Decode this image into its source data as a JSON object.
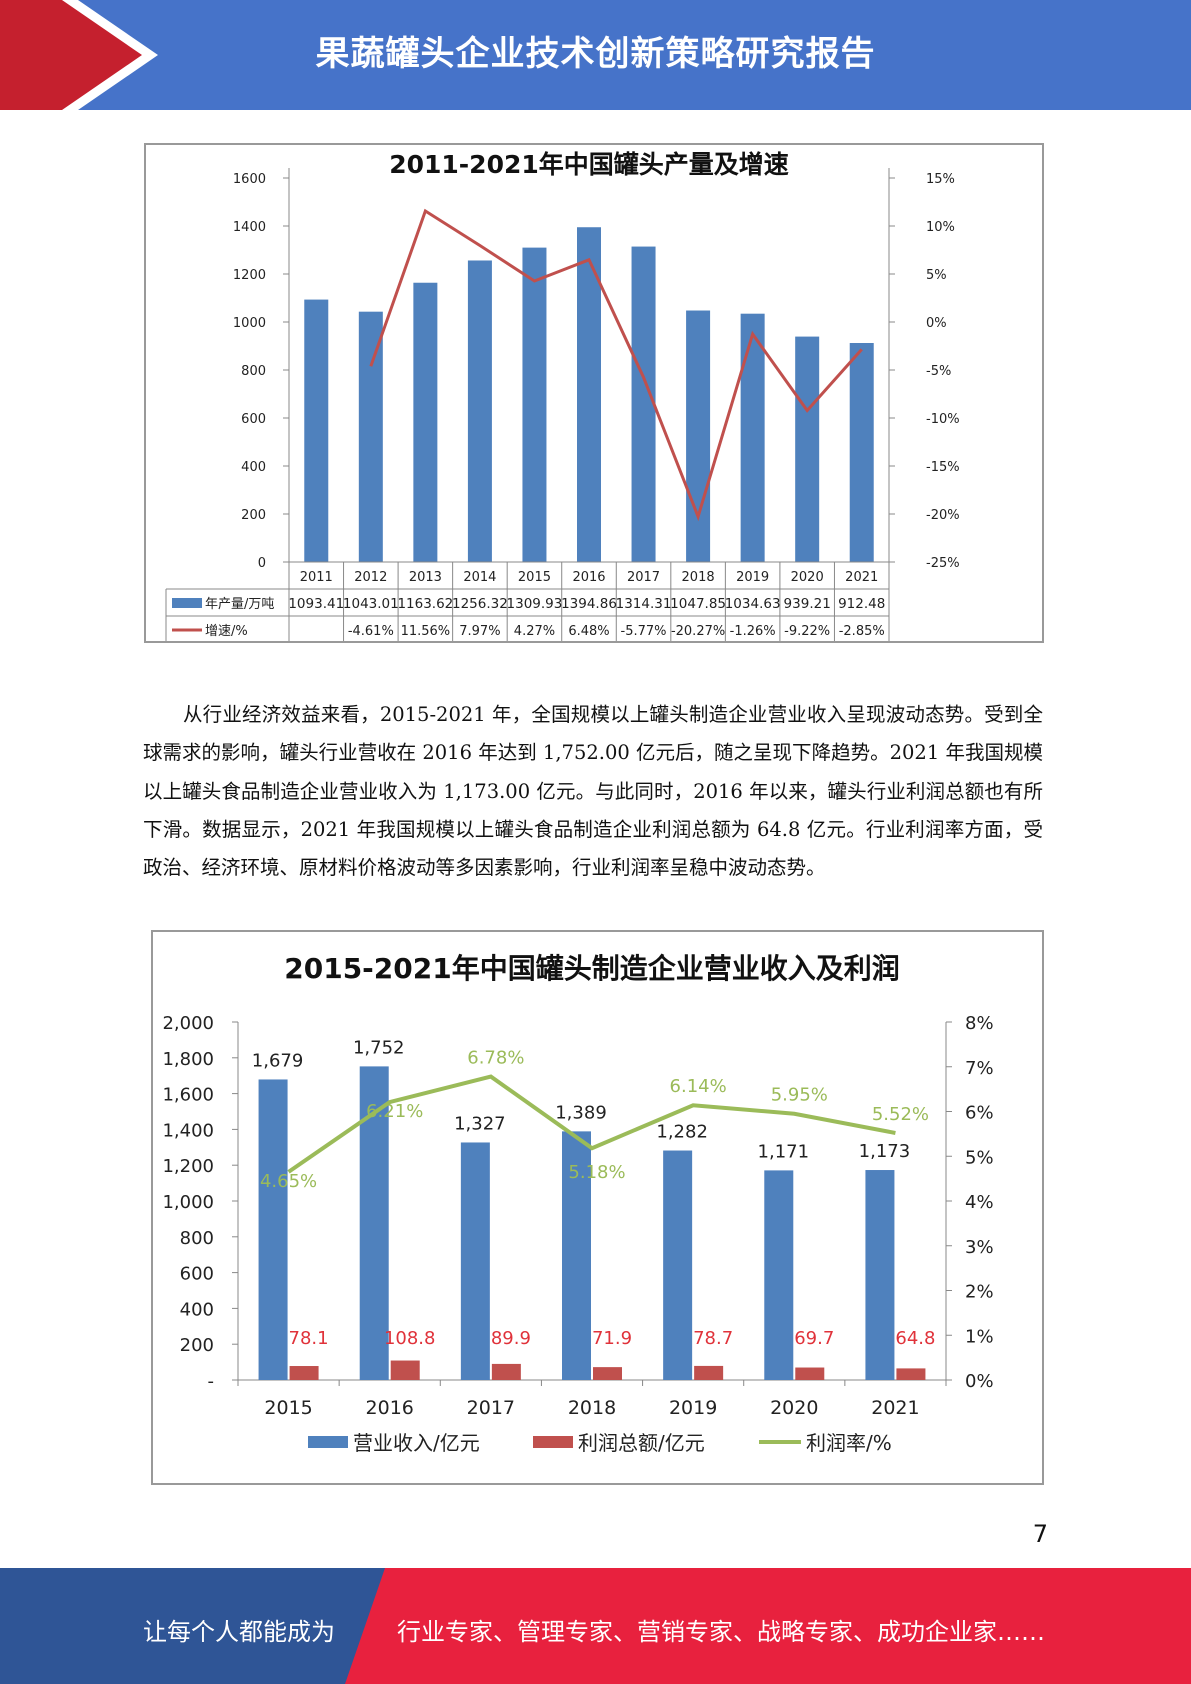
{
  "header": {
    "title": "果蔬罐头企业技术创新策略研究报告"
  },
  "colors": {
    "header_blue": "#4673c9",
    "header_red": "#c5202e",
    "footer_blue": "#2f5596",
    "footer_red": "#e8213e"
  },
  "chart_data": [
    {
      "type": "bar",
      "title": "2011-2021年中国罐头产量及增速",
      "categories": [
        "2011",
        "2012",
        "2013",
        "2014",
        "2015",
        "2016",
        "2017",
        "2018",
        "2019",
        "2020",
        "2021"
      ],
      "series": [
        {
          "name": "年产量/万吨",
          "type": "bar",
          "axis": "left",
          "color": "#4f81bd",
          "values": [
            1093.41,
            1043.01,
            1163.62,
            1256.32,
            1309.93,
            1394.86,
            1314.31,
            1047.85,
            1034.63,
            939.21,
            912.48
          ],
          "labels": [
            "1093.41",
            "1043.01",
            "1163.62",
            "1256.32",
            "1309.93",
            "1394.86",
            "1314.31",
            "1047.85",
            "1034.63",
            "939.21",
            "912.48"
          ]
        },
        {
          "name": "增速/%",
          "type": "line",
          "axis": "right",
          "color": "#c0504d",
          "values": [
            null,
            -4.61,
            11.56,
            7.97,
            4.27,
            6.48,
            -5.77,
            -20.27,
            -1.26,
            -9.22,
            -2.85
          ],
          "labels": [
            "",
            "-4.61%",
            "11.56%",
            "7.97%",
            "4.27%",
            "6.48%",
            "-5.77%",
            "-20.27%",
            "-1.26%",
            "-9.22%",
            "-2.85%"
          ]
        }
      ],
      "ylim": [
        0,
        1600
      ],
      "y_ticks": [
        "0",
        "200",
        "400",
        "600",
        "800",
        "1000",
        "1200",
        "1400",
        "1600"
      ],
      "y2lim": [
        -25,
        15
      ],
      "y2_ticks": [
        "-25%",
        "-20%",
        "-15%",
        "-10%",
        "-5%",
        "0%",
        "5%",
        "10%",
        "15%"
      ],
      "legend": "data-table"
    },
    {
      "type": "bar",
      "title": "2015-2021年中国罐头制造企业营业收入及利润",
      "categories": [
        "2015",
        "2016",
        "2017",
        "2018",
        "2019",
        "2020",
        "2021"
      ],
      "series": [
        {
          "name": "营业收入/亿元",
          "type": "bar",
          "axis": "left",
          "color": "#4f81bd",
          "values": [
            1679,
            1752,
            1327,
            1389,
            1282,
            1171,
            1173
          ],
          "labels": [
            "1,679",
            "1,752",
            "1,327",
            "1,389",
            "1,282",
            "1,171",
            "1,173"
          ]
        },
        {
          "name": "利润总额/亿元",
          "type": "bar",
          "axis": "left",
          "color": "#c0504d",
          "values": [
            78.1,
            108.8,
            89.9,
            71.9,
            78.7,
            69.7,
            64.8
          ],
          "labels": [
            "78.1",
            "108.8",
            "89.9",
            "71.9",
            "78.7",
            "69.7",
            "64.8"
          ]
        },
        {
          "name": "利润率/%",
          "type": "line",
          "axis": "right",
          "color": "#9bbb59",
          "values": [
            4.65,
            6.21,
            6.78,
            5.18,
            6.14,
            5.95,
            5.52
          ],
          "labels": [
            "4.65%",
            "6.21%",
            "6.78%",
            "5.18%",
            "6.14%",
            "5.95%",
            "5.52%"
          ]
        }
      ],
      "ylim": [
        0,
        2000
      ],
      "y_ticks": [
        "-",
        "200",
        "400",
        "600",
        "800",
        "1,000",
        "1,200",
        "1,400",
        "1,600",
        "1,800",
        "2,000"
      ],
      "y2lim": [
        0,
        8
      ],
      "y2_ticks": [
        "0%",
        "1%",
        "2%",
        "3%",
        "4%",
        "5%",
        "6%",
        "7%",
        "8%"
      ],
      "legend": "bottom"
    }
  ],
  "paragraph": "从行业经济效益来看，2015-2021 年，全国规模以上罐头制造企业营业收入呈现波动态势。受到全球需求的影响，罐头行业营收在 2016 年达到 1,752.00 亿元后，随之呈现下降趋势。2021 年我国规模以上罐头食品制造企业营业收入为 1,173.00 亿元。与此同时，2016 年以来，罐头行业利润总额也有所下滑。数据显示，2021 年我国规模以上罐头食品制造企业利润总额为 64.8 亿元。行业利润率方面，受政治、经济环境、原材料价格波动等多因素影响，行业利润率呈稳中波动态势。",
  "page_number": "7",
  "footer": {
    "left_text": "让每个人都能成为",
    "right_text": "行业专家、管理专家、营销专家、战略专家、成功企业家……"
  }
}
